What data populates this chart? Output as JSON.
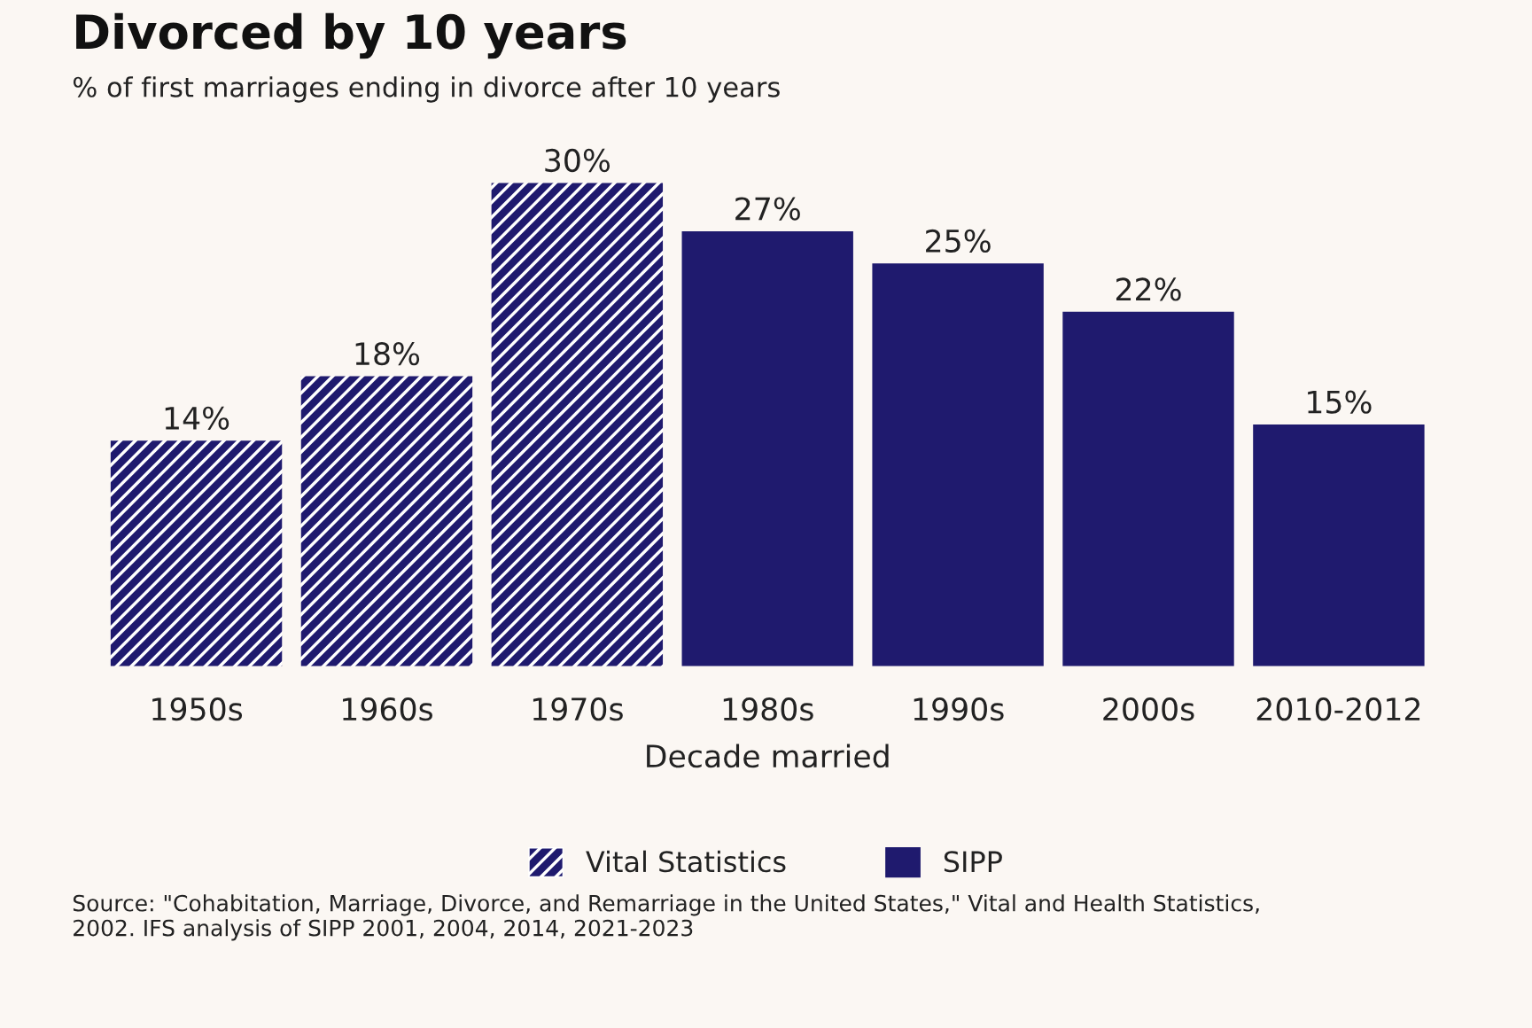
{
  "chart_data": {
    "type": "bar",
    "title": "Divorced by 10 years",
    "subtitle": "% of first marriages ending in divorce after 10 years",
    "xlabel": "Decade married",
    "categories": [
      "1950s",
      "1960s",
      "1970s",
      "1980s",
      "1990s",
      "2000s",
      "2010-2012"
    ],
    "series": [
      {
        "name": "Vital Statistics",
        "color": "#1f1a6e",
        "values": [
          14,
          18,
          30,
          null,
          null,
          null,
          null
        ],
        "value_labels": [
          "14%",
          "18%",
          "30%",
          null,
          null,
          null,
          null
        ]
      },
      {
        "name": "SIPP",
        "color": "#1f1a6e",
        "values": [
          null,
          null,
          null,
          27,
          25,
          22,
          15
        ],
        "value_labels": [
          null,
          null,
          null,
          "27%",
          "25%",
          "22%",
          "15%"
        ]
      }
    ],
    "legend": "bottom",
    "grid": false,
    "annotations": [
      "Source: \"Cohabitation, Marriage, Divorce, and Remarriage in the United States,\" Vital and Health Statistics, 2002. IFS analysis of SIPP 2001, 2004, 2014, 2021-2023"
    ]
  }
}
